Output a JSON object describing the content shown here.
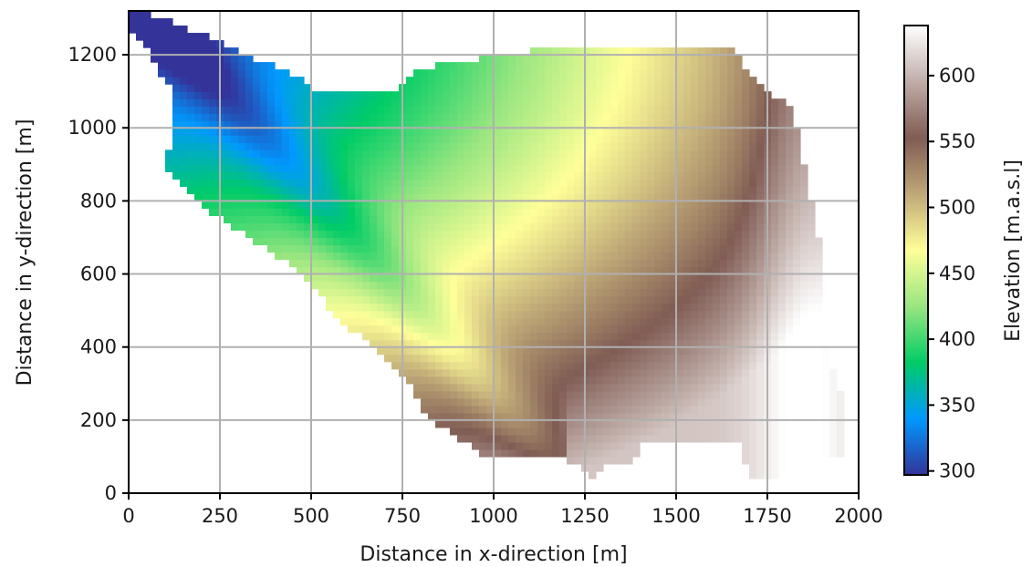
{
  "chart_data": {
    "type": "heatmap",
    "title": "",
    "xlabel": "Distance in x-direction [m]",
    "ylabel": "Distance in y-direction [m]",
    "xlim": [
      0,
      2000
    ],
    "ylim": [
      0,
      1320
    ],
    "xticks": [
      "0",
      "250",
      "500",
      "750",
      "1000",
      "1250",
      "1500",
      "1750",
      "2000"
    ],
    "yticks": [
      "0",
      "200",
      "400",
      "600",
      "800",
      "1000",
      "1200"
    ],
    "grid": true,
    "cell_size_m": 20,
    "colorbar": {
      "label": "Elevation [m.a.s.l]",
      "range": [
        297,
        638
      ],
      "ticks": [
        "300",
        "350",
        "400",
        "450",
        "500",
        "550",
        "600"
      ],
      "colormap": "terrain",
      "stops": [
        "#333399",
        "#0099ff",
        "#00cc66",
        "#99e680",
        "#ffff99",
        "#bfa877",
        "#805c54",
        "#c0ada8",
        "#ffffff"
      ]
    },
    "elevation_pattern": {
      "min_at": [
        20,
        1300
      ],
      "max_region": "east edge (x≈1850–1900, y≈350–900)",
      "stream_channel": "green band running from (1150,850) through (850,550) to (550,850)"
    }
  }
}
